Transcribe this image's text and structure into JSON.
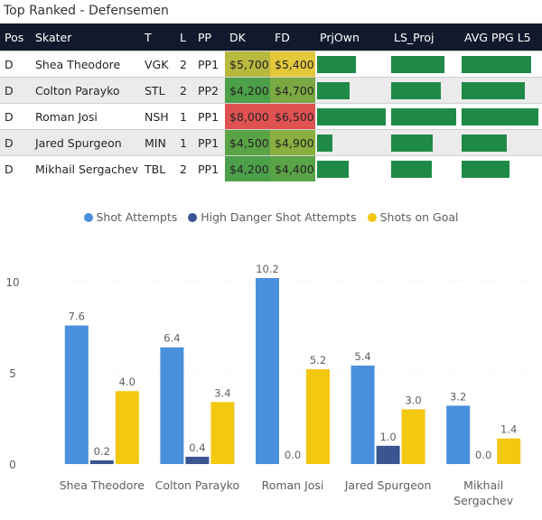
{
  "title": "Top Ranked - Defensemen",
  "table": {
    "columns": [
      "Pos",
      "Skater",
      "T",
      "L",
      "PP",
      "DK",
      "FD",
      "PrjOwn",
      "LS_Proj",
      "AVG PPG L5"
    ],
    "rows": [
      {
        "pos": "D",
        "skater": "Shea Theodore",
        "team": "VGK",
        "line": "2",
        "pp": "PP1",
        "dk": "$5,700",
        "fd": "$5,400",
        "dk_color": "#b9b83f",
        "fd_color": "#e3c83c",
        "prjown": 0.56,
        "ls_proj": 0.82,
        "avg_ppg": 0.9
      },
      {
        "pos": "D",
        "skater": "Colton Parayko",
        "team": "STL",
        "line": "2",
        "pp": "PP2",
        "dk": "$4,200",
        "fd": "$4,700",
        "dk_color": "#4ca04a",
        "fd_color": "#7aa843",
        "prjown": 0.48,
        "ls_proj": 0.76,
        "avg_ppg": 0.82
      },
      {
        "pos": "D",
        "skater": "Roman Josi",
        "team": "NSH",
        "line": "1",
        "pp": "PP1",
        "dk": "$8,000",
        "fd": "$6,500",
        "dk_color": "#e05252",
        "fd_color": "#e05252",
        "prjown": 1.0,
        "ls_proj": 1.0,
        "avg_ppg": 1.0
      },
      {
        "pos": "D",
        "skater": "Jared Spurgeon",
        "team": "MIN",
        "line": "1",
        "pp": "PP1",
        "dk": "$4,500",
        "fd": "$4,900",
        "dk_color": "#5aa346",
        "fd_color": "#8aae3f",
        "prjown": 0.22,
        "ls_proj": 0.64,
        "avg_ppg": 0.59
      },
      {
        "pos": "D",
        "skater": "Mikhail Sergachev",
        "team": "TBL",
        "line": "2",
        "pp": "PP1",
        "dk": "$4,200",
        "fd": "$4,400",
        "dk_color": "#4ca04a",
        "fd_color": "#5aa346",
        "prjown": 0.46,
        "ls_proj": 0.62,
        "avg_ppg": 0.62
      }
    ],
    "bar_color": "#1f8a48"
  },
  "chart_data": {
    "type": "bar",
    "categories": [
      "Shea Theodore",
      "Colton Parayko",
      "Roman Josi",
      "Jared Spurgeon",
      "Mikhail Sergachev"
    ],
    "category_lines": [
      [
        "Shea Theodore"
      ],
      [
        "Colton Parayko"
      ],
      [
        "Roman Josi"
      ],
      [
        "Jared Spurgeon"
      ],
      [
        "Mikhail",
        "Sergachev"
      ]
    ],
    "series": [
      {
        "name": "Shot Attempts",
        "color": "#4a8fdc",
        "values": [
          7.6,
          6.4,
          10.2,
          5.4,
          3.2
        ],
        "labels": [
          "7.6",
          "6.4",
          "10.2",
          "5.4",
          "3.2"
        ]
      },
      {
        "name": "High Danger Shot Attempts",
        "color": "#3a5590",
        "values": [
          0.2,
          0.4,
          0.0,
          1.0,
          0.0
        ],
        "labels": [
          "0.2",
          "0.4",
          "0.0",
          "1.0",
          "0.0"
        ]
      },
      {
        "name": "Shots on Goal",
        "color": "#f2c811",
        "values": [
          4.0,
          3.4,
          5.2,
          3.0,
          1.4
        ],
        "labels": [
          "4.0",
          "3.4",
          "5.2",
          "3.0",
          "1.4"
        ]
      }
    ],
    "yticks": [
      0,
      5,
      10
    ],
    "ytick_labels": [
      "0",
      "5",
      "10"
    ],
    "ylim": [
      0,
      10.2
    ],
    "legend_position": "top-center",
    "xlabel": "",
    "ylabel": ""
  }
}
